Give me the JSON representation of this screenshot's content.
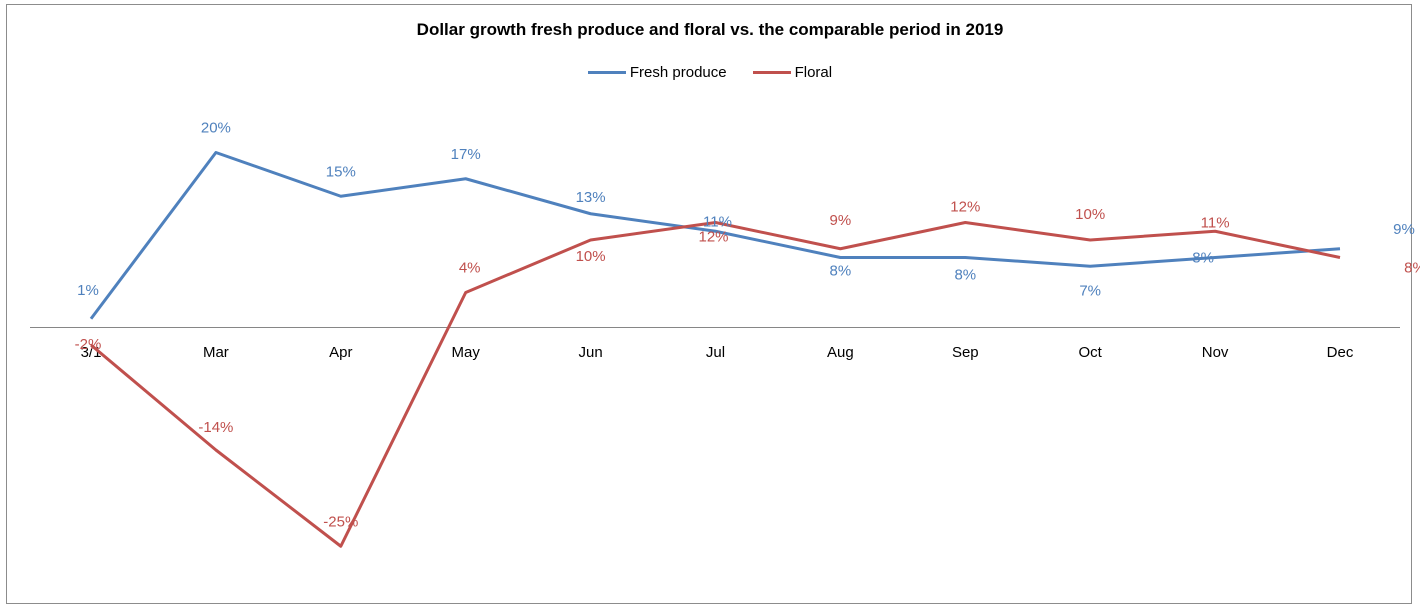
{
  "chart_data": {
    "type": "line",
    "title": "Dollar growth fresh produce and floral vs. the comparable period in 2019",
    "categories": [
      "3/1",
      "Mar",
      "Apr",
      "May",
      "Jun",
      "Jul",
      "Aug",
      "Sep",
      "Oct",
      "Nov",
      "Dec"
    ],
    "series": [
      {
        "name": "Fresh produce",
        "color": "#4f81bd",
        "values": [
          1,
          20,
          15,
          17,
          13,
          11,
          8,
          8,
          7,
          8,
          9
        ],
        "labels": [
          "1%",
          "20%",
          "15%",
          "17%",
          "13%",
          "11%",
          "8%",
          "8%",
          "7%",
          "8%",
          "9%"
        ]
      },
      {
        "name": "Floral",
        "color": "#c0504d",
        "values": [
          -2,
          -14,
          -25,
          4,
          10,
          12,
          9,
          12,
          10,
          11,
          8
        ],
        "labels": [
          "-2%",
          "-14%",
          "-25%",
          "4%",
          "10%",
          "12%",
          "9%",
          "12%",
          "10%",
          "11%",
          "8%"
        ]
      }
    ],
    "ylim": [
      -30,
      25
    ],
    "grid": false,
    "legend": "top-center",
    "xlabel": "",
    "ylabel": ""
  }
}
